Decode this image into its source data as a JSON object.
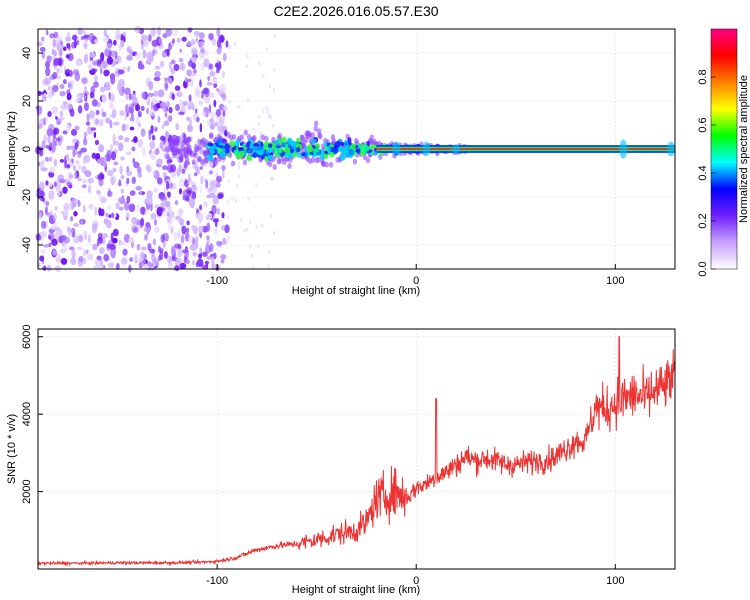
{
  "chart_data": [
    {
      "type": "heatmap",
      "title": "C2E2.2026.016.05.57.E30",
      "xlabel": "Height of straight line (km)",
      "ylabel": "Frequency (Hz)",
      "xlim": [
        -190,
        130
      ],
      "ylim": [
        -50,
        50
      ],
      "xticks": [
        -100,
        0,
        100
      ],
      "xtick_labels": [
        "-100",
        "0",
        "100"
      ],
      "yticks": [
        -40,
        -20,
        0,
        20,
        40
      ],
      "ytick_labels": [
        "-40",
        "-20",
        "0",
        "20",
        "40"
      ],
      "colorbar": {
        "label": "Normalized spectral amplitude",
        "range": [
          0,
          1
        ],
        "ticks": [
          0.0,
          0.2,
          0.4,
          0.6,
          0.8
        ],
        "tick_labels": [
          "0.0",
          "0.2",
          "0.4",
          "0.6",
          "0.8"
        ],
        "colors": [
          "#ffffff",
          "#c8a0ff",
          "#7020ff",
          "#0000ff",
          "#00ffff",
          "#00ff00",
          "#ffff00",
          "#ff8000",
          "#ff0000",
          "#ff0080"
        ]
      },
      "description_features": {
        "noise_region_x": [
          -190,
          -95
        ],
        "signal_center_frequency": 0,
        "signal_spread_hz": [
          [
            -90,
            8
          ],
          [
            -50,
            10
          ],
          [
            -20,
            4
          ],
          [
            0,
            2
          ],
          [
            130,
            1.5
          ]
        ]
      },
      "grid": true
    },
    {
      "type": "line",
      "xlabel": "Height of straight line (km)",
      "ylabel": "SNR (10 * v/v)",
      "xlim": [
        -190,
        130
      ],
      "ylim": [
        0,
        6200
      ],
      "xticks": [
        -100,
        0,
        100
      ],
      "xtick_labels": [
        "-100",
        "0",
        "100"
      ],
      "yticks": [
        2000,
        4000,
        6000
      ],
      "ytick_labels": [
        "2000",
        "4000",
        "6000"
      ],
      "series": [
        {
          "color": "#ee3333",
          "x": [
            -190,
            -170,
            -150,
            -130,
            -110,
            -100,
            -90,
            -80,
            -70,
            -60,
            -50,
            -40,
            -30,
            -25,
            -20,
            -15,
            -10,
            -5,
            0,
            5,
            10,
            15,
            20,
            25,
            30,
            35,
            40,
            45,
            50,
            55,
            60,
            65,
            70,
            75,
            80,
            85,
            90,
            95,
            100,
            105,
            110,
            115,
            120,
            125,
            130
          ],
          "y": [
            150,
            150,
            160,
            160,
            170,
            200,
            300,
            500,
            600,
            650,
            750,
            900,
            1000,
            1200,
            1800,
            1900,
            2000,
            1800,
            2100,
            2200,
            2400,
            2500,
            2700,
            2900,
            2800,
            2850,
            2800,
            2700,
            2700,
            2750,
            2800,
            2800,
            2900,
            3100,
            3300,
            3300,
            4200,
            4100,
            4300,
            4400,
            4500,
            4400,
            4600,
            4700,
            5000
          ]
        }
      ],
      "annotations": [
        {
          "x": 10,
          "y": 4400,
          "note": "spike"
        },
        {
          "x": 102,
          "y": 6000,
          "note": "spike"
        }
      ],
      "grid": true
    }
  ]
}
